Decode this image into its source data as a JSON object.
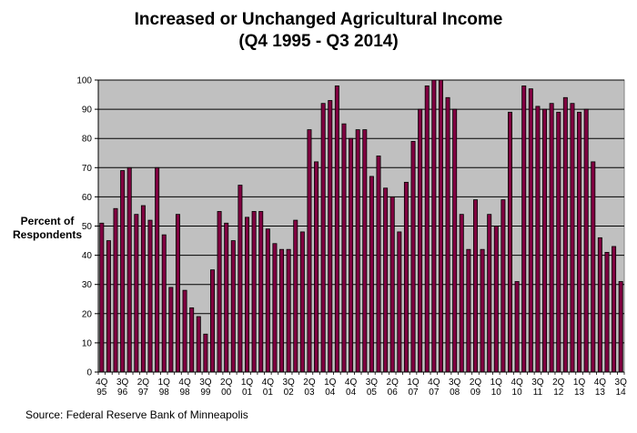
{
  "title": {
    "line1": "Increased or Unchanged Agricultural Income",
    "line2": "(Q4 1995 - Q3 2014)"
  },
  "source": "Source: Federal Reserve Bank of Minneapolis",
  "colors": {
    "plot_bg": "#c0c0c0",
    "bar_fill": "#800040",
    "bar_stroke": "#000000",
    "grid": "#000000"
  },
  "chart_data": {
    "type": "bar",
    "title": "Increased or Unchanged Agricultural Income",
    "subtitle": "(Q4 1995 - Q3 2014)",
    "xlabel": "",
    "ylabel": "Percent of Respondents",
    "ylabel_lines": [
      "Percent of",
      "Respondents"
    ],
    "ylim": [
      0,
      100
    ],
    "yticks": [
      0,
      10,
      20,
      30,
      40,
      50,
      60,
      70,
      80,
      90,
      100
    ],
    "grid": true,
    "legend": "none",
    "categories": [
      "Q4 1995",
      "Q1 1996",
      "Q2 1996",
      "Q3 1996",
      "Q4 1996",
      "Q1 1997",
      "Q2 1997",
      "Q3 1997",
      "Q4 1997",
      "Q1 1998",
      "Q2 1998",
      "Q3 1998",
      "Q4 1998",
      "Q1 1999",
      "Q2 1999",
      "Q3 1999",
      "Q4 1999",
      "Q1 2000",
      "Q2 2000",
      "Q3 2000",
      "Q4 2000",
      "Q1 2001",
      "Q2 2001",
      "Q3 2001",
      "Q4 2001",
      "Q1 2002",
      "Q2 2002",
      "Q3 2002",
      "Q4 2002",
      "Q1 2003",
      "Q2 2003",
      "Q3 2003",
      "Q4 2003",
      "Q1 2004",
      "Q2 2004",
      "Q3 2004",
      "Q4 2004",
      "Q1 2005",
      "Q2 2005",
      "Q3 2005",
      "Q4 2005",
      "Q1 2006",
      "Q2 2006",
      "Q3 2006",
      "Q4 2006",
      "Q1 2007",
      "Q2 2007",
      "Q3 2007",
      "Q4 2007",
      "Q1 2008",
      "Q2 2008",
      "Q3 2008",
      "Q4 2008",
      "Q1 2009",
      "Q2 2009",
      "Q3 2009",
      "Q4 2009",
      "Q1 2010",
      "Q2 2010",
      "Q3 2010",
      "Q4 2010",
      "Q1 2011",
      "Q2 2011",
      "Q3 2011",
      "Q4 2011",
      "Q1 2012",
      "Q2 2012",
      "Q3 2012",
      "Q4 2012",
      "Q1 2013",
      "Q2 2013",
      "Q3 2013",
      "Q4 2013",
      "Q1 2014",
      "Q2 2014",
      "Q3 2014"
    ],
    "values": [
      51,
      45,
      56,
      69,
      70,
      54,
      57,
      52,
      70,
      47,
      29,
      54,
      28,
      22,
      19,
      13,
      35,
      55,
      51,
      45,
      64,
      53,
      55,
      55,
      49,
      44,
      42,
      42,
      52,
      48,
      83,
      72,
      92,
      93,
      98,
      85,
      80,
      83,
      83,
      67,
      74,
      63,
      60,
      48,
      65,
      79,
      90,
      98,
      100,
      100,
      94,
      90,
      54,
      42,
      59,
      42,
      54,
      50,
      59,
      89,
      31,
      98,
      97,
      91,
      90,
      92,
      89,
      94,
      92,
      89,
      90,
      72,
      46,
      41,
      43,
      31
    ],
    "tick_labels": [
      {
        "index": 0,
        "top": "4Q",
        "bottom": "95"
      },
      {
        "index": 3,
        "top": "3Q",
        "bottom": "96"
      },
      {
        "index": 6,
        "top": "2Q",
        "bottom": "97"
      },
      {
        "index": 9,
        "top": "1Q",
        "bottom": "98"
      },
      {
        "index": 12,
        "top": "4Q",
        "bottom": "98"
      },
      {
        "index": 15,
        "top": "3Q",
        "bottom": "99"
      },
      {
        "index": 18,
        "top": "2Q",
        "bottom": "00"
      },
      {
        "index": 21,
        "top": "1Q",
        "bottom": "01"
      },
      {
        "index": 24,
        "top": "4Q",
        "bottom": "01"
      },
      {
        "index": 27,
        "top": "3Q",
        "bottom": "02"
      },
      {
        "index": 30,
        "top": "2Q",
        "bottom": "03"
      },
      {
        "index": 33,
        "top": "1Q",
        "bottom": "04"
      },
      {
        "index": 36,
        "top": "4Q",
        "bottom": "04"
      },
      {
        "index": 39,
        "top": "3Q",
        "bottom": "05"
      },
      {
        "index": 42,
        "top": "2Q",
        "bottom": "06"
      },
      {
        "index": 45,
        "top": "1Q",
        "bottom": "07"
      },
      {
        "index": 48,
        "top": "4Q",
        "bottom": "07"
      },
      {
        "index": 51,
        "top": "3Q",
        "bottom": "08"
      },
      {
        "index": 54,
        "top": "2Q",
        "bottom": "09"
      },
      {
        "index": 57,
        "top": "1Q",
        "bottom": "10"
      },
      {
        "index": 60,
        "top": "4Q",
        "bottom": "10"
      },
      {
        "index": 63,
        "top": "3Q",
        "bottom": "11"
      },
      {
        "index": 66,
        "top": "2Q",
        "bottom": "12"
      },
      {
        "index": 69,
        "top": "1Q",
        "bottom": "13"
      },
      {
        "index": 72,
        "top": "4Q",
        "bottom": "13"
      },
      {
        "index": 75,
        "top": "3Q",
        "bottom": "14"
      }
    ]
  }
}
